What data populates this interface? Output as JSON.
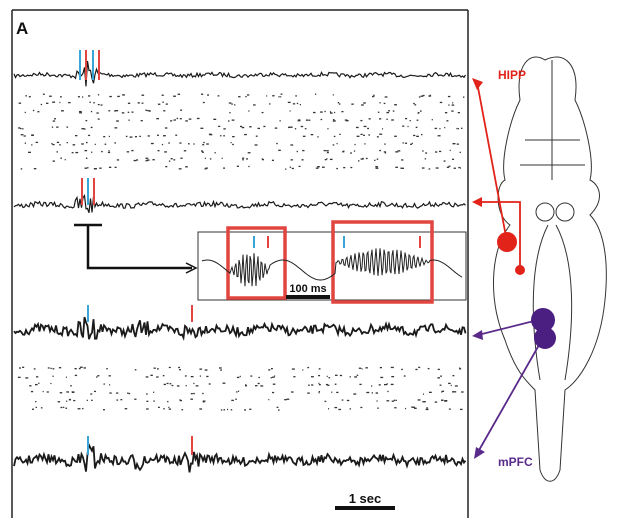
{
  "panel_label": "A",
  "regions": {
    "hipp": "HIPP",
    "mpfc": "mPFC"
  },
  "scale_bars": {
    "inset": "100 ms",
    "main": "1 sec"
  }
}
